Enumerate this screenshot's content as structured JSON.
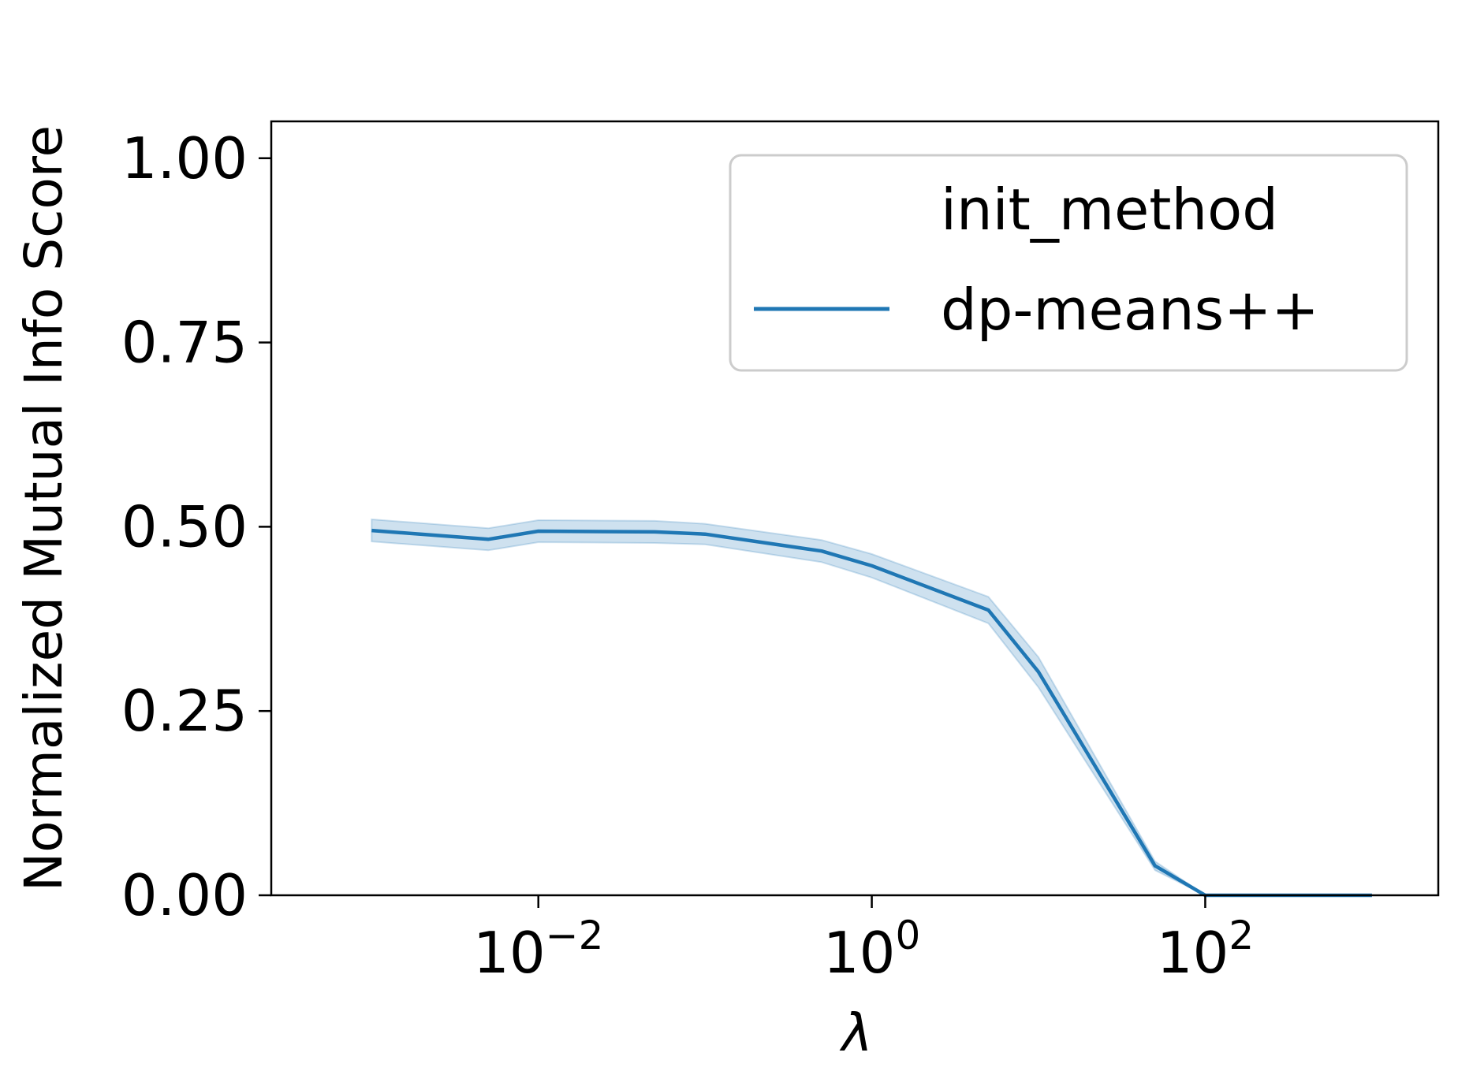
{
  "chart_data": {
    "type": "line",
    "title": "",
    "xlabel": "λ",
    "ylabel": "Normalized Mutual Info Score",
    "x_scale": "log",
    "xlim": [
      0.00025,
      2500
    ],
    "ylim": [
      -0.0,
      1.05
    ],
    "x_ticks": [
      {
        "value": 0.01,
        "base": "10",
        "exp": "−2"
      },
      {
        "value": 1,
        "base": "10",
        "exp": "0"
      },
      {
        "value": 100,
        "base": "10",
        "exp": "2"
      }
    ],
    "y_ticks": [
      {
        "value": 0.0,
        "label": "0.00"
      },
      {
        "value": 0.25,
        "label": "0.25"
      },
      {
        "value": 0.5,
        "label": "0.50"
      },
      {
        "value": 0.75,
        "label": "0.75"
      },
      {
        "value": 1.0,
        "label": "1.00"
      }
    ],
    "grid": false,
    "legend": {
      "title": "init_method",
      "placement": "top-right"
    },
    "series": [
      {
        "name": "dp-means++",
        "color": "#1f77b4",
        "x": [
          0.001,
          0.005,
          0.01,
          0.05,
          0.1,
          0.5,
          1,
          5,
          10,
          50,
          100,
          1000
        ],
        "y": [
          0.495,
          0.483,
          0.494,
          0.493,
          0.49,
          0.467,
          0.447,
          0.387,
          0.303,
          0.04,
          0.0,
          0.0
        ],
        "y_lower": [
          0.48,
          0.468,
          0.479,
          0.478,
          0.476,
          0.452,
          0.431,
          0.369,
          0.282,
          0.034,
          0.0,
          0.0
        ],
        "y_upper": [
          0.51,
          0.498,
          0.509,
          0.508,
          0.504,
          0.482,
          0.463,
          0.405,
          0.323,
          0.046,
          0.0,
          0.0
        ]
      }
    ]
  }
}
